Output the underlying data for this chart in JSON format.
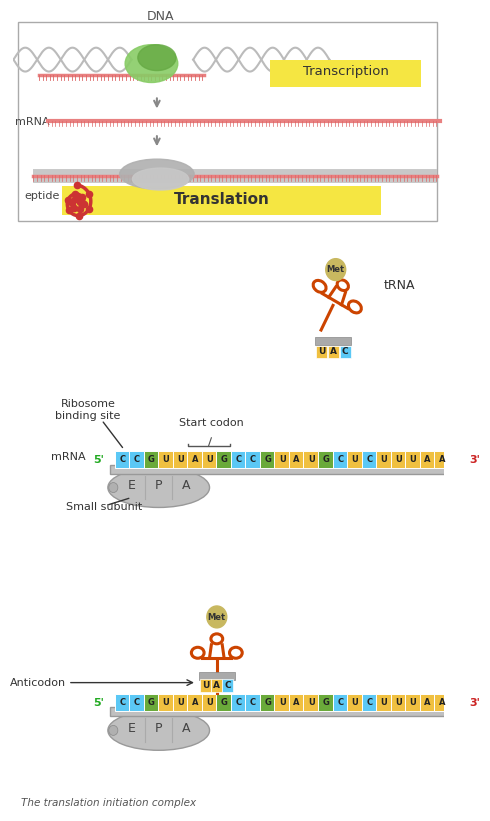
{
  "bg_color": "#ffffff",
  "mrna_sequence": [
    "C",
    "C",
    "G",
    "U",
    "U",
    "A",
    "U",
    "G",
    "C",
    "C",
    "G",
    "U",
    "A",
    "U",
    "G",
    "C",
    "U",
    "C",
    "U",
    "U",
    "U",
    "A",
    "A"
  ],
  "nucleotide_colors": {
    "A": "#f0c040",
    "U": "#f0c040",
    "G": "#6aaa3a",
    "C": "#5bc8f5"
  },
  "anticodon": [
    "U",
    "A",
    "C"
  ],
  "epa_labels": [
    "E",
    "P",
    "A"
  ],
  "transcription_label": "Transcription",
  "translation_label": "Translation",
  "trna_label": "tRNA",
  "met_label": "Met",
  "ribosome_label_text": "Ribosome\nbinding site",
  "start_codon_label": "Start codon",
  "mrna_label": "mRNA",
  "five_prime": "5'",
  "three_prime": "3'",
  "small_subunit_label": "Small subunit",
  "anticodon_label": "Anticodon",
  "footer_text": "The translation initiation complex",
  "yellow_bg": "#f5e642",
  "trna_color": "#cc4400",
  "met_color": "#c8b860",
  "peptide_color": "#cc3333"
}
